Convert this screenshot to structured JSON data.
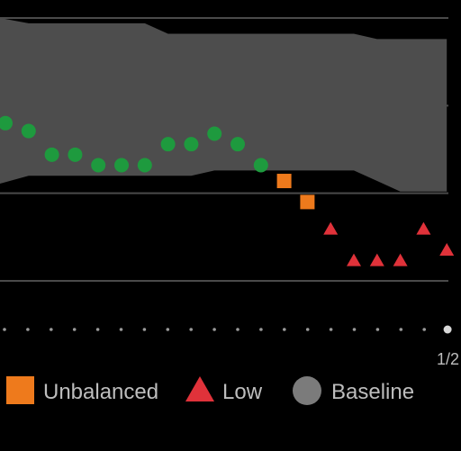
{
  "chart_data": {
    "type": "scatter",
    "x": [
      "1",
      "2",
      "3",
      "4",
      "5",
      "6",
      "7",
      "8",
      "9",
      "10",
      "11",
      "12",
      "13",
      "14",
      "15",
      "16",
      "17",
      "18",
      "19",
      "20"
    ],
    "ylim": [
      0,
      100
    ],
    "baseline_band": {
      "name": "Baseline",
      "lower": [
        37,
        40,
        40,
        40,
        40,
        40,
        40,
        40,
        40,
        42,
        42,
        42,
        42,
        42,
        42,
        42,
        38,
        34,
        34,
        34
      ],
      "upper": [
        100,
        98,
        98,
        98,
        98,
        98,
        98,
        94,
        94,
        94,
        94,
        94,
        94,
        94,
        94,
        94,
        92,
        92,
        92,
        92
      ]
    },
    "series": [
      {
        "name": "Baseline",
        "marker": "circle",
        "color": "#1e9a3e",
        "points": [
          [
            1,
            60
          ],
          [
            2,
            57
          ],
          [
            3,
            48
          ],
          [
            4,
            48
          ],
          [
            5,
            44
          ],
          [
            6,
            44
          ],
          [
            7,
            44
          ],
          [
            8,
            52
          ],
          [
            9,
            52
          ],
          [
            10,
            56
          ],
          [
            11,
            52
          ],
          [
            12,
            44
          ]
        ]
      },
      {
        "name": "Unbalanced",
        "marker": "square",
        "color": "#ee7a1c",
        "points": [
          [
            13,
            38
          ],
          [
            14,
            30
          ]
        ]
      },
      {
        "name": "Low",
        "marker": "triangle",
        "color": "#e0323a",
        "points": [
          [
            15,
            20
          ],
          [
            16,
            8
          ],
          [
            17,
            8
          ],
          [
            18,
            8
          ],
          [
            19,
            20
          ],
          [
            20,
            12
          ]
        ]
      }
    ],
    "grid": true,
    "legend_position": "bottom"
  },
  "legend": {
    "items": [
      {
        "key": "unbalanced",
        "label": "Unbalanced",
        "marker": "square",
        "color": "#ee7a1c"
      },
      {
        "key": "low",
        "label": "Low",
        "marker": "triangle",
        "color": "#e0323a"
      },
      {
        "key": "baseline",
        "label": "Baseline",
        "marker": "circle",
        "color": "#7b7b7b"
      }
    ]
  },
  "pager": {
    "page_indicator": "1/2",
    "dot_count": 20,
    "active_index": 19
  },
  "colors": {
    "background": "#000000",
    "band": "#4d4d4d",
    "gridline": "#4a4a4a",
    "dot_inactive": "#9a9a9a",
    "dot_active": "#d8d8d8"
  }
}
